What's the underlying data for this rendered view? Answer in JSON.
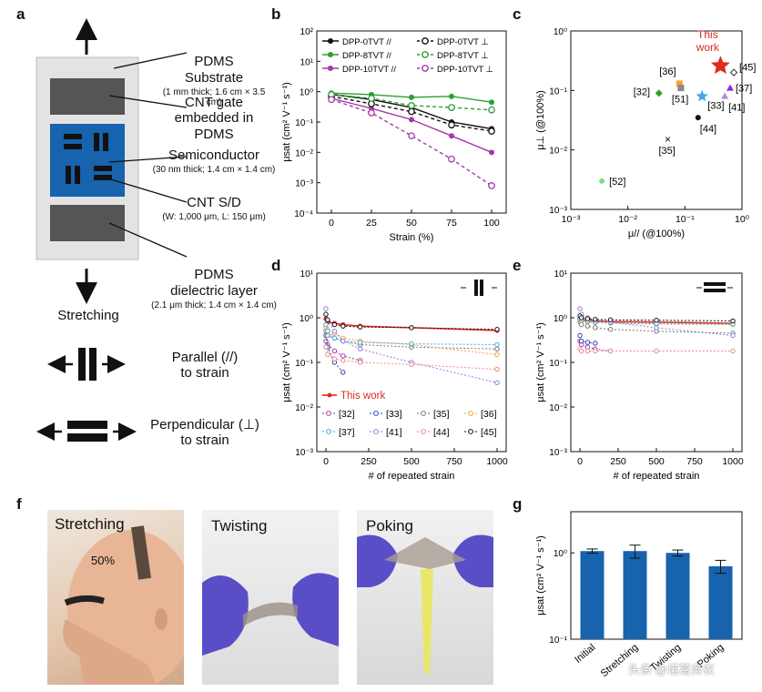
{
  "panels": {
    "a": "a",
    "b": "b",
    "c": "c",
    "d": "d",
    "e": "e",
    "f": "f",
    "g": "g"
  },
  "panel_a": {
    "substrate": {
      "title": "PDMS\nSubstrate",
      "sub": "(1 mm thick; 1.6 cm × 3.5 cm)"
    },
    "gate": {
      "title": "CNT gate\nembedded in PDMS"
    },
    "semiconductor": {
      "title": "Semiconductor",
      "sub": "(30 nm thick; 1.4 cm × 1.4 cm)"
    },
    "sd": {
      "title": "CNT S/D",
      "sub": "(W: 1,000 μm, L: 150 μm)"
    },
    "dielectric": {
      "title": "PDMS\ndielectric layer",
      "sub": "(2.1 μm thick; 1.4 cm × 1.4 cm)"
    },
    "stretching": "Stretching",
    "parallel": "Parallel (//)\nto strain",
    "perpendicular": "Perpendicular (⊥)\nto strain",
    "colors": {
      "substrate": "#e3e3e3",
      "gate": "#555555",
      "semiconductor": "#1763ad"
    }
  },
  "chart_data": [
    {
      "id": "b",
      "type": "line",
      "xlabel": "Strain (%)",
      "ylabel": "μsat (cm² V⁻¹ s⁻¹)",
      "x": [
        0,
        25,
        50,
        75,
        100
      ],
      "yscale": "log",
      "ylim": [
        0.0001,
        100
      ],
      "yticks": [
        "10⁻⁴",
        "10⁻³",
        "10⁻²",
        "10⁻¹",
        "10⁰",
        "10¹",
        "10²"
      ],
      "legend": "top",
      "series": [
        {
          "name": "DPP-0TVT //",
          "color": "#111111",
          "dash": false,
          "marker": "filled",
          "values": [
            0.82,
            0.55,
            0.3,
            0.1,
            0.06
          ]
        },
        {
          "name": "DPP-8TVT //",
          "color": "#2e9e34",
          "dash": false,
          "marker": "filled",
          "values": [
            0.9,
            0.8,
            0.65,
            0.7,
            0.45
          ]
        },
        {
          "name": "DPP-10TVT //",
          "color": "#a23aa8",
          "dash": false,
          "marker": "filled",
          "values": [
            0.6,
            0.28,
            0.12,
            0.035,
            0.01
          ]
        },
        {
          "name": "DPP-0TVT ⊥",
          "color": "#111111",
          "dash": true,
          "marker": "open",
          "values": [
            0.7,
            0.4,
            0.22,
            0.08,
            0.05
          ]
        },
        {
          "name": "DPP-8TVT ⊥",
          "color": "#2e9e34",
          "dash": true,
          "marker": "open",
          "values": [
            0.8,
            0.6,
            0.35,
            0.3,
            0.25
          ]
        },
        {
          "name": "DPP-10TVT ⊥",
          "color": "#a23aa8",
          "dash": true,
          "marker": "open",
          "values": [
            0.55,
            0.2,
            0.035,
            0.006,
            0.0008
          ]
        }
      ]
    },
    {
      "id": "c",
      "type": "scatter",
      "xlabel": "μ// (@100%)",
      "ylabel": "μ⊥ (@100%)",
      "xscale": "log",
      "yscale": "log",
      "xlim": [
        0.001,
        1
      ],
      "ylim": [
        0.001,
        1
      ],
      "xticks": [
        "10⁻³",
        "10⁻²",
        "10⁻¹",
        "10⁰"
      ],
      "yticks": [
        "10⁻³",
        "10⁻²",
        "10⁻¹",
        "10⁰"
      ],
      "points": [
        {
          "label": "This work",
          "x": 0.42,
          "y": 0.26,
          "color": "#e02a1f",
          "marker": "star"
        },
        {
          "label": "[45]",
          "x": 0.72,
          "y": 0.2,
          "color": "#333333",
          "marker": "open-diamond"
        },
        {
          "label": "[37]",
          "x": 0.62,
          "y": 0.11,
          "color": "#8a2be2",
          "marker": "triangle"
        },
        {
          "label": "[41]",
          "x": 0.5,
          "y": 0.08,
          "color": "#b58ad6",
          "marker": "triangle"
        },
        {
          "label": "[36]",
          "x": 0.08,
          "y": 0.13,
          "color": "#f3a13a",
          "marker": "square"
        },
        {
          "label": "[51]",
          "x": 0.085,
          "y": 0.11,
          "color": "#888888",
          "marker": "square"
        },
        {
          "label": "[33]",
          "x": 0.2,
          "y": 0.08,
          "color": "#40a9e0",
          "marker": "star"
        },
        {
          "label": "[32]",
          "x": 0.035,
          "y": 0.09,
          "color": "#2e9e34",
          "marker": "diamond"
        },
        {
          "label": "[44]",
          "x": 0.17,
          "y": 0.035,
          "color": "#111111",
          "marker": "dot"
        },
        {
          "label": "[35]",
          "x": 0.05,
          "y": 0.015,
          "color": "#111111",
          "marker": "x"
        },
        {
          "label": "[52]",
          "x": 0.0035,
          "y": 0.003,
          "color": "#7be07b",
          "marker": "dot"
        }
      ]
    },
    {
      "id": "d",
      "type": "line",
      "xlabel": "# of repeated strain",
      "ylabel": "μsat (cm² V⁻¹ s⁻¹)",
      "xlim": [
        0,
        1000
      ],
      "xticks": [
        "0",
        "250",
        "500",
        "750",
        "1000"
      ],
      "yscale": "log",
      "ylim": [
        0.001,
        10
      ],
      "yticks": [
        "10⁻³",
        "10⁻²",
        "10⁻¹",
        "10⁰",
        "10¹"
      ],
      "legend": "bottom-left",
      "series": [
        {
          "name": "This work",
          "color": "#e02a1f",
          "x": [
            0,
            10,
            50,
            100,
            200,
            500,
            1000
          ],
          "values": [
            0.95,
            0.8,
            0.75,
            0.7,
            0.65,
            0.6,
            0.52
          ]
        },
        {
          "name": "[32]",
          "color": "#a23aa8",
          "x": [
            0,
            10,
            50,
            100,
            200
          ],
          "values": [
            0.3,
            0.25,
            0.18,
            0.14,
            0.11
          ]
        },
        {
          "name": "[33]",
          "color": "#2b3fa8",
          "x": [
            0,
            10,
            50,
            100
          ],
          "values": [
            0.4,
            0.22,
            0.1,
            0.06
          ]
        },
        {
          "name": "[35]",
          "color": "#777777",
          "x": [
            0,
            10,
            50,
            100,
            200,
            500,
            1000
          ],
          "values": [
            0.5,
            0.4,
            0.35,
            0.3,
            0.25,
            0.22,
            0.2
          ]
        },
        {
          "name": "[36]",
          "color": "#f3a13a",
          "x": [
            0,
            10,
            50,
            100,
            200,
            500,
            1000
          ],
          "values": [
            0.6,
            0.55,
            0.45,
            0.35,
            0.3,
            0.25,
            0.15
          ]
        },
        {
          "name": "[37]",
          "color": "#40a9e0",
          "x": [
            0,
            10,
            50,
            100,
            200,
            500,
            1000
          ],
          "values": [
            0.7,
            0.5,
            0.35,
            0.3,
            0.28,
            0.26,
            0.25
          ]
        },
        {
          "name": "[41]",
          "color": "#8f7ee0",
          "x": [
            0,
            10,
            50,
            100,
            200,
            500,
            1000
          ],
          "values": [
            1.6,
            0.9,
            0.5,
            0.3,
            0.2,
            0.1,
            0.035
          ]
        },
        {
          "name": "[44]",
          "color": "#f08a8a",
          "x": [
            0,
            10,
            50,
            100,
            200,
            500,
            1000
          ],
          "values": [
            0.22,
            0.15,
            0.12,
            0.11,
            0.1,
            0.09,
            0.07
          ]
        },
        {
          "name": "[45]",
          "color": "#111111",
          "x": [
            0,
            10,
            50,
            100,
            200,
            500,
            1000
          ],
          "values": [
            1.2,
            0.9,
            0.7,
            0.65,
            0.62,
            0.6,
            0.55
          ]
        }
      ]
    },
    {
      "id": "e",
      "type": "line",
      "xlabel": "# of repeated strain",
      "ylabel": "μsat (cm² V⁻¹ s⁻¹)",
      "xlim": [
        0,
        1000
      ],
      "xticks": [
        "0",
        "250",
        "500",
        "750",
        "1000"
      ],
      "yscale": "log",
      "ylim": [
        0.001,
        10
      ],
      "yticks": [
        "10⁻³",
        "10⁻²",
        "10⁻¹",
        "10⁰",
        "10¹"
      ],
      "series": [
        {
          "name": "This work",
          "color": "#e02a1f",
          "x": [
            0,
            10,
            50,
            100,
            200,
            500,
            1000
          ],
          "values": [
            0.95,
            0.9,
            0.88,
            0.85,
            0.82,
            0.8,
            0.75
          ]
        },
        {
          "name": "[32]",
          "color": "#a23aa8",
          "x": [
            0,
            10,
            50,
            100,
            200
          ],
          "values": [
            0.3,
            0.25,
            0.22,
            0.2,
            0.18
          ]
        },
        {
          "name": "[33]",
          "color": "#2b3fa8",
          "x": [
            0,
            10,
            50,
            100
          ],
          "values": [
            0.4,
            0.3,
            0.28,
            0.27
          ]
        },
        {
          "name": "[35]",
          "color": "#777777",
          "x": [
            0,
            10,
            50,
            100,
            200,
            500,
            1000
          ],
          "values": [
            0.8,
            0.7,
            0.65,
            0.6,
            0.55,
            0.5,
            0.45
          ]
        },
        {
          "name": "[36]",
          "color": "#f3a13a",
          "x": [
            0,
            10,
            50,
            100,
            200,
            500,
            1000
          ],
          "values": [
            0.9,
            0.85,
            0.8,
            0.78,
            0.75,
            0.72,
            0.7
          ]
        },
        {
          "name": "[37]",
          "color": "#40a9e0",
          "x": [
            0,
            10,
            50,
            100,
            200,
            500,
            1000
          ],
          "values": [
            0.95,
            0.9,
            0.85,
            0.8,
            0.78,
            0.75,
            0.72
          ]
        },
        {
          "name": "[41]",
          "color": "#8f7ee0",
          "x": [
            0,
            10,
            50,
            100,
            200,
            500,
            1000
          ],
          "values": [
            1.6,
            1.2,
            1.0,
            0.9,
            0.8,
            0.6,
            0.4
          ]
        },
        {
          "name": "[44]",
          "color": "#f08a8a",
          "x": [
            0,
            10,
            50,
            100,
            200,
            500,
            1000
          ],
          "values": [
            0.2,
            0.18,
            0.18,
            0.18,
            0.18,
            0.18,
            0.18
          ]
        },
        {
          "name": "[45]",
          "color": "#111111",
          "x": [
            0,
            10,
            50,
            100,
            200,
            500,
            1000
          ],
          "values": [
            1.1,
            1.0,
            0.95,
            0.92,
            0.9,
            0.88,
            0.85
          ]
        }
      ]
    },
    {
      "id": "g",
      "type": "bar",
      "categories": [
        "Initial",
        "Stretching",
        "Twisting",
        "Poking"
      ],
      "values": [
        1.05,
        1.05,
        1.0,
        0.7
      ],
      "errors": [
        0.06,
        0.18,
        0.08,
        0.12
      ],
      "ylabel": "μsat (cm² V⁻¹ s⁻¹)",
      "yscale": "log",
      "ylim": [
        0.1,
        3
      ],
      "yticks": [
        "10⁻¹",
        "10⁰"
      ],
      "color": "#1763ad"
    }
  ],
  "panel_f": {
    "photos": [
      "Stretching",
      "Twisting",
      "Poking"
    ],
    "annotation": "50%"
  },
  "watermark": "头条 @诺葛务农"
}
